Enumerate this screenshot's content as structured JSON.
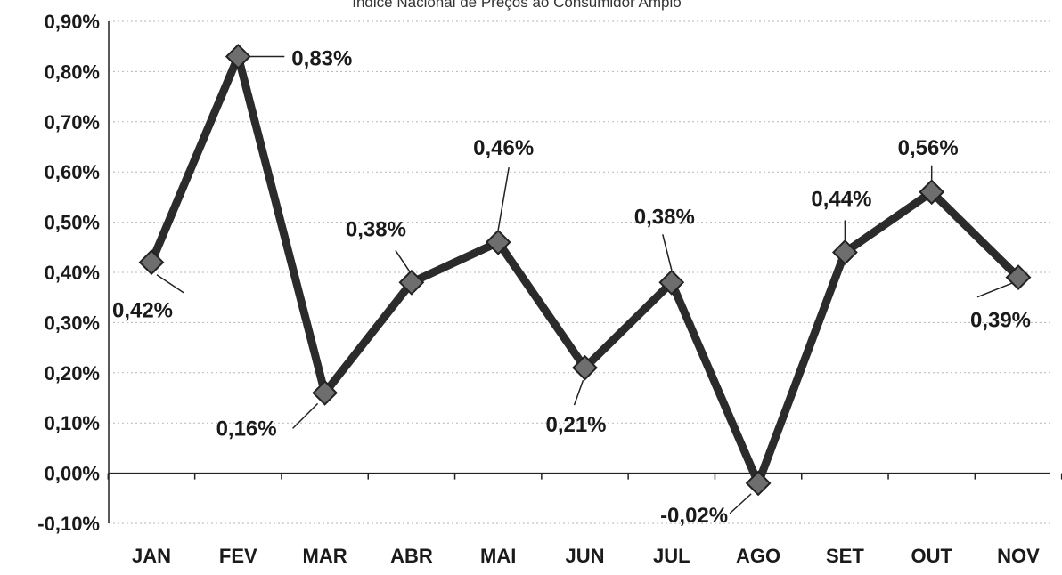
{
  "chart_data": {
    "type": "line",
    "title": "Índice Nacional de Preços ao Consumidor Amplo",
    "xlabel": "",
    "ylabel": "",
    "categories": [
      "JAN",
      "FEV",
      "MAR",
      "ABR",
      "MAI",
      "JUN",
      "JUL",
      "AGO",
      "SET",
      "OUT",
      "NOV"
    ],
    "series": [
      {
        "values": [
          0.42,
          0.83,
          0.16,
          0.38,
          0.46,
          0.21,
          0.38,
          -0.02,
          0.44,
          0.56,
          0.39
        ]
      }
    ],
    "data_labels": [
      "0,42%",
      "0,83%",
      "0,16%",
      "0,38%",
      "0,46%",
      "0,21%",
      "0,38%",
      "-0,02%",
      "0,44%",
      "0,56%",
      "0,39%"
    ],
    "ylim": [
      -0.1,
      0.9
    ],
    "y_ticks": [
      {
        "value": 0.9,
        "label": "0,90%"
      },
      {
        "value": 0.8,
        "label": "0,80%"
      },
      {
        "value": 0.7,
        "label": "0,70%"
      },
      {
        "value": 0.6,
        "label": "0,60%"
      },
      {
        "value": 0.5,
        "label": "0,50%"
      },
      {
        "value": 0.4,
        "label": "0,40%"
      },
      {
        "value": 0.3,
        "label": "0,30%"
      },
      {
        "value": 0.2,
        "label": "0,20%"
      },
      {
        "value": 0.1,
        "label": "0,10%"
      },
      {
        "value": 0.0,
        "label": "0,00%"
      },
      {
        "value": -0.1,
        "label": "-0,10%"
      }
    ],
    "grid": true,
    "legend": "none",
    "marker": "diamond",
    "line_color": "#2b2b2b",
    "marker_color": "#6e6e6e"
  }
}
